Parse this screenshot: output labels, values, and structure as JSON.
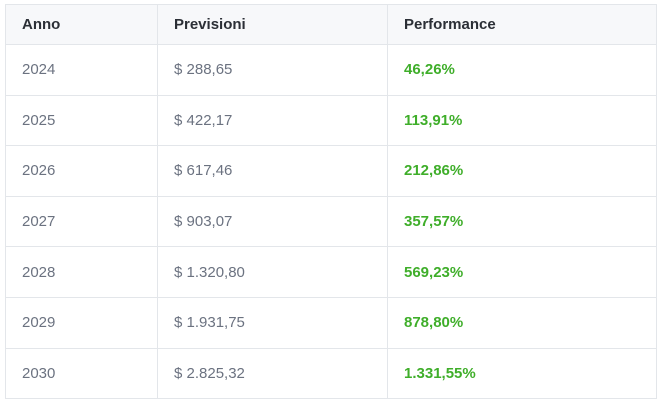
{
  "table": {
    "headers": [
      "Anno",
      "Previsioni",
      "Performance"
    ],
    "rows": [
      {
        "year": "2024",
        "forecast": "$ 288,65",
        "performance": "46,26%"
      },
      {
        "year": "2025",
        "forecast": "$ 422,17",
        "performance": "113,91%"
      },
      {
        "year": "2026",
        "forecast": "$ 617,46",
        "performance": "212,86%"
      },
      {
        "year": "2027",
        "forecast": "$ 903,07",
        "performance": "357,57%"
      },
      {
        "year": "2028",
        "forecast": "$ 1.320,80",
        "performance": "569,23%"
      },
      {
        "year": "2029",
        "forecast": "$ 1.931,75",
        "performance": "878,80%"
      },
      {
        "year": "2030",
        "forecast": "$ 2.825,32",
        "performance": "1.331,55%"
      }
    ]
  },
  "colors": {
    "performance_text": "#3fae2a",
    "header_bg": "#f7f8fa",
    "border": "#e3e6ea"
  }
}
